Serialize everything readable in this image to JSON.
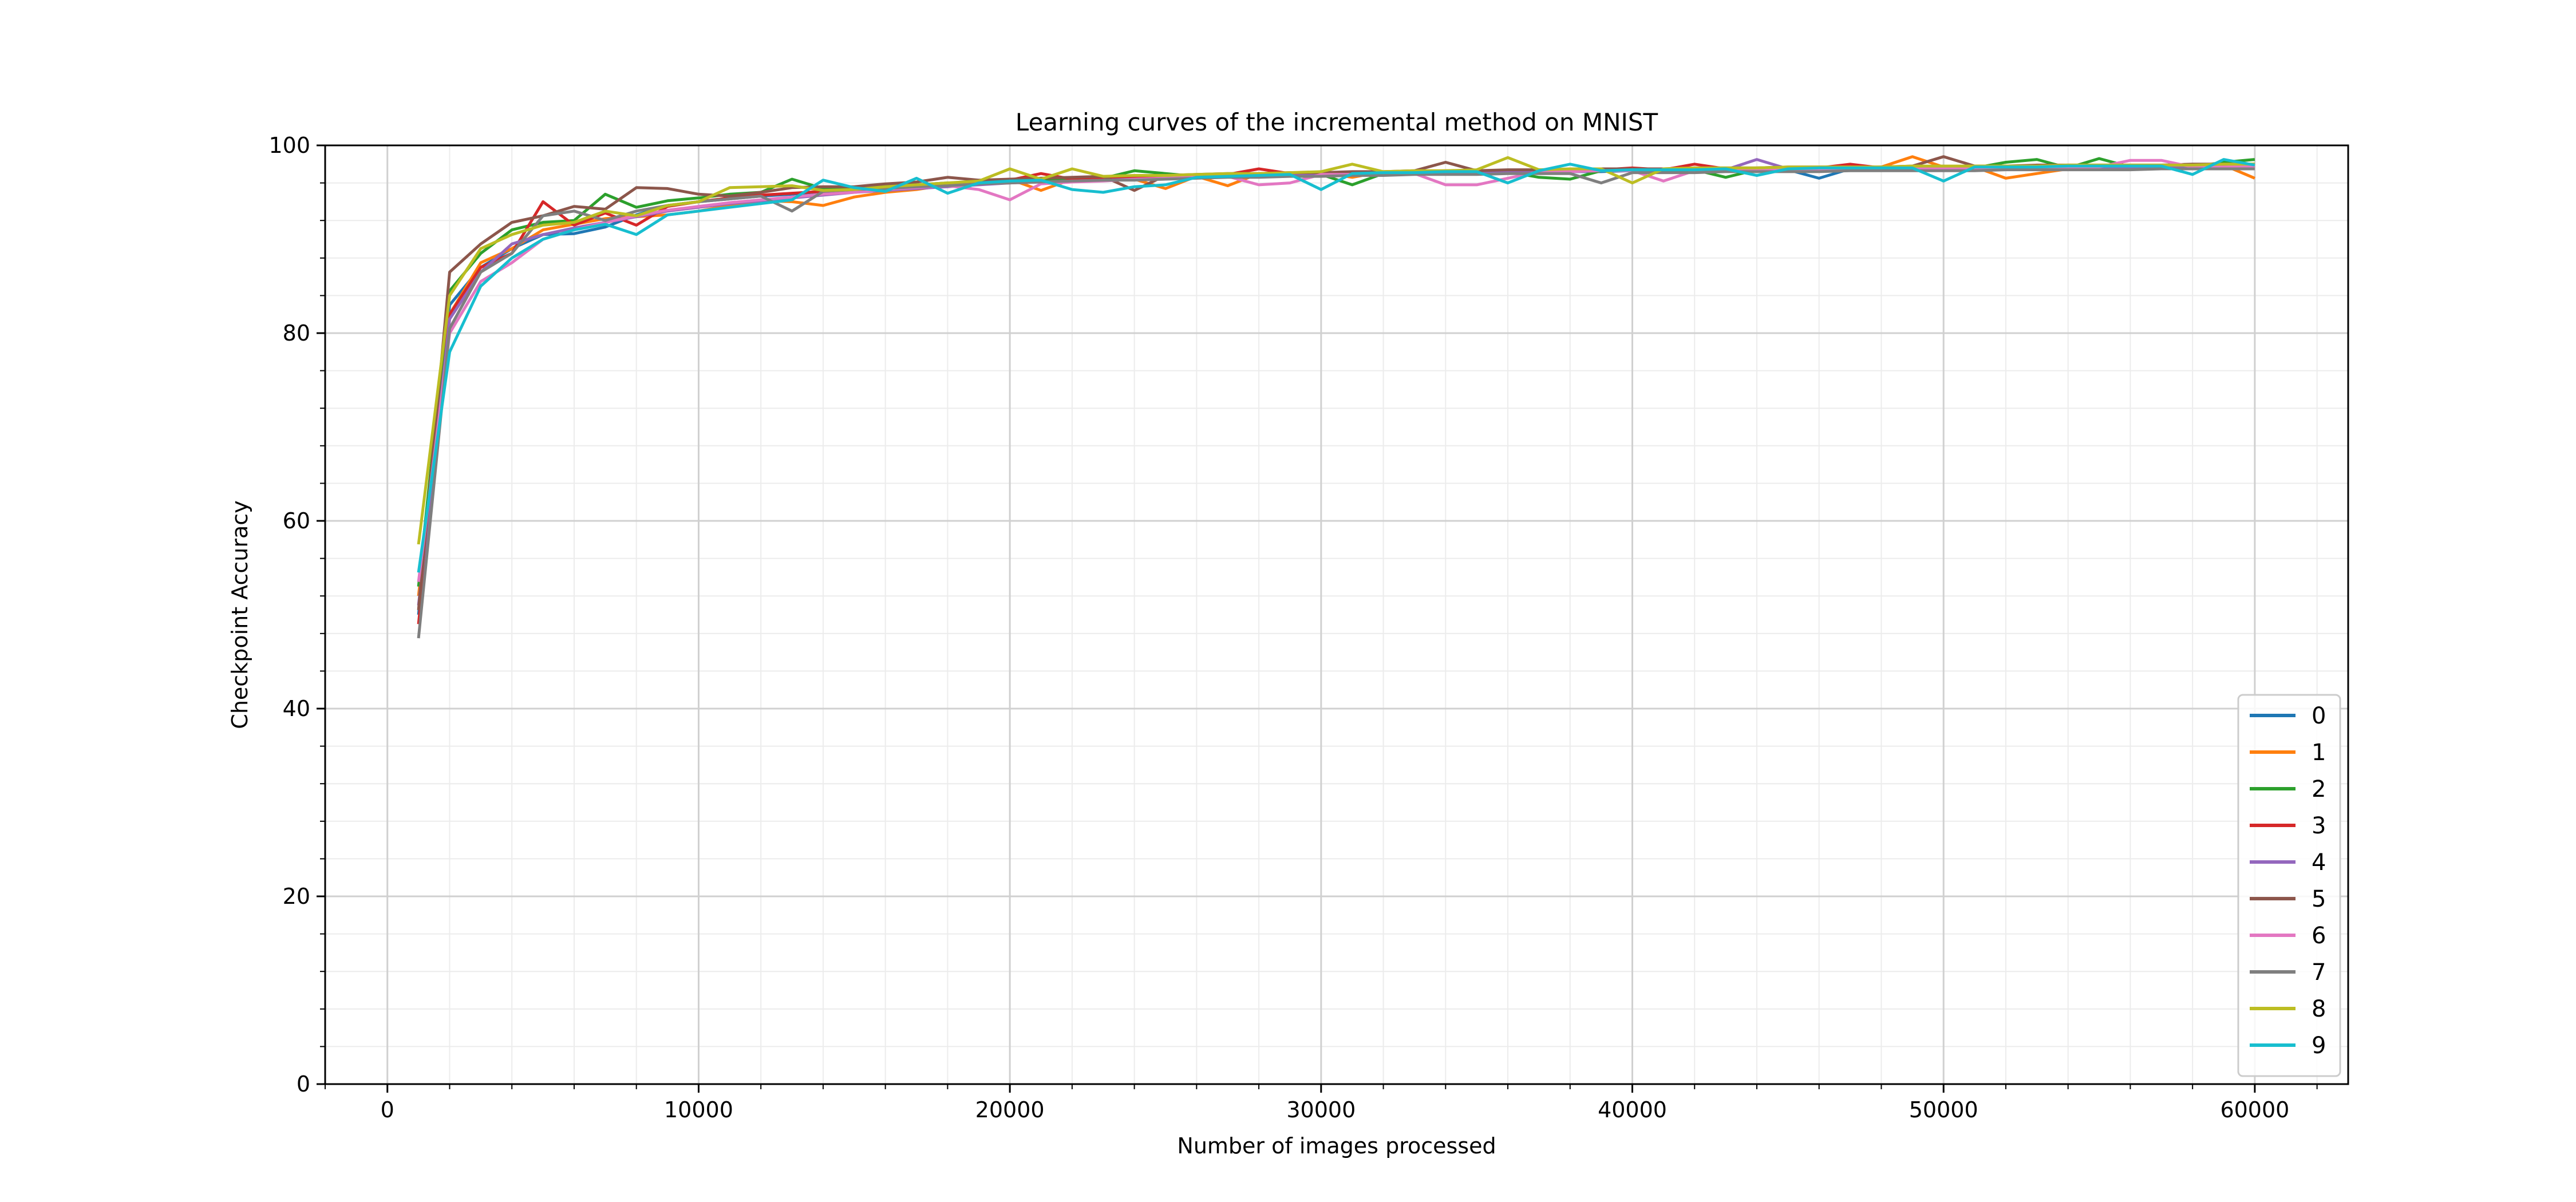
{
  "chart_data": {
    "type": "line",
    "title": "Learning curves of the incremental method on MNIST",
    "xlabel": "Number of images processed",
    "ylabel": "Checkpoint Accuracy",
    "xlim": [
      -2000,
      63000
    ],
    "ylim": [
      0,
      100
    ],
    "xticks": [
      0,
      10000,
      20000,
      30000,
      40000,
      50000,
      60000
    ],
    "yticks": [
      0,
      20,
      40,
      60,
      80,
      100
    ],
    "grid": "major and minor",
    "legend_position": "lower-right",
    "x": [
      1000,
      2000,
      3000,
      4000,
      5000,
      6000,
      7000,
      8000,
      9000,
      10000,
      11000,
      12000,
      13000,
      14000,
      15000,
      16000,
      17000,
      18000,
      19000,
      20000,
      21000,
      22000,
      23000,
      24000,
      25000,
      26000,
      27000,
      28000,
      29000,
      30000,
      31000,
      32000,
      33000,
      34000,
      35000,
      36000,
      37000,
      38000,
      39000,
      40000,
      41000,
      42000,
      43000,
      44000,
      45000,
      46000,
      47000,
      48000,
      49000,
      50000,
      51000,
      52000,
      53000,
      54000,
      55000,
      56000,
      57000,
      58000,
      59000,
      60000
    ],
    "series": [
      {
        "name": "0",
        "color": "#1f77b4",
        "values": [
          50.0,
          83.0,
          87.0,
          89.0,
          90.5,
          90.6,
          91.3,
          92.6,
          93.6,
          94.0,
          94.3,
          94.6,
          94.8,
          95.1,
          95.2,
          95.4,
          95.6,
          95.8,
          96.0,
          96.1,
          96.2,
          96.3,
          96.3,
          96.4,
          96.5,
          96.6,
          96.7,
          96.8,
          96.8,
          96.9,
          96.9,
          97.0,
          97.0,
          97.1,
          97.1,
          97.1,
          97.2,
          97.2,
          97.2,
          97.3,
          97.3,
          97.3,
          97.4,
          97.4,
          97.4,
          96.5,
          97.5,
          97.5,
          97.5,
          97.6,
          97.6,
          97.6,
          97.7,
          97.7,
          97.7,
          97.7,
          97.8,
          97.8,
          97.8,
          97.8
        ]
      },
      {
        "name": "1",
        "color": "#ff7f0e",
        "values": [
          52.0,
          82.0,
          87.5,
          89.0,
          91.0,
          91.6,
          92.2,
          92.4,
          92.6,
          93.0,
          93.6,
          94.1,
          94.0,
          93.6,
          94.5,
          95.0,
          95.3,
          95.8,
          96.1,
          96.4,
          95.2,
          96.4,
          96.5,
          96.4,
          95.4,
          96.7,
          95.7,
          97.0,
          97.1,
          97.1,
          96.6,
          97.2,
          97.2,
          97.3,
          97.3,
          97.3,
          97.4,
          97.4,
          97.4,
          97.5,
          97.5,
          97.5,
          97.5,
          97.6,
          97.6,
          97.6,
          97.6,
          97.7,
          98.8,
          97.7,
          97.7,
          96.5,
          97.0,
          97.5,
          97.8,
          97.8,
          97.8,
          97.8,
          97.9,
          96.5
        ]
      },
      {
        "name": "2",
        "color": "#2ca02c",
        "values": [
          53.0,
          84.5,
          88.5,
          91.0,
          91.8,
          92.0,
          94.8,
          93.4,
          94.1,
          94.4,
          94.8,
          95.0,
          96.4,
          95.4,
          95.5,
          95.7,
          95.8,
          96.0,
          96.1,
          96.2,
          96.3,
          96.4,
          96.5,
          97.3,
          97.0,
          96.7,
          96.8,
          96.8,
          96.9,
          96.9,
          95.8,
          97.0,
          97.1,
          97.1,
          97.1,
          97.2,
          96.6,
          96.4,
          97.3,
          97.3,
          97.3,
          97.4,
          96.6,
          97.4,
          97.4,
          97.5,
          97.5,
          97.5,
          97.5,
          97.6,
          97.6,
          98.2,
          98.5,
          97.6,
          98.6,
          97.7,
          97.7,
          97.7,
          98.2,
          98.5
        ]
      },
      {
        "name": "3",
        "color": "#d62728",
        "values": [
          49.0,
          82.0,
          87.0,
          88.5,
          94.0,
          91.5,
          92.8,
          91.5,
          93.5,
          94.0,
          94.4,
          94.7,
          94.9,
          95.1,
          95.3,
          95.5,
          95.7,
          95.9,
          96.1,
          96.3,
          97.0,
          96.4,
          96.5,
          96.6,
          96.7,
          96.8,
          96.9,
          97.5,
          97.0,
          97.0,
          97.1,
          97.1,
          97.2,
          97.2,
          97.2,
          97.3,
          97.3,
          97.3,
          97.4,
          97.6,
          97.4,
          98.0,
          97.5,
          97.5,
          97.5,
          97.6,
          98.0,
          97.6,
          97.6,
          97.7,
          97.7,
          97.7,
          97.7,
          97.8,
          97.8,
          97.8,
          97.8,
          97.8,
          97.9,
          97.9
        ]
      },
      {
        "name": "4",
        "color": "#9467bd",
        "values": [
          51.0,
          81.5,
          86.5,
          89.5,
          90.5,
          91.2,
          91.8,
          92.4,
          93.0,
          93.4,
          93.8,
          94.1,
          94.4,
          94.7,
          95.0,
          95.2,
          95.4,
          95.6,
          95.8,
          96.0,
          96.1,
          96.2,
          96.3,
          96.4,
          96.5,
          96.6,
          96.7,
          96.8,
          96.9,
          96.9,
          97.0,
          97.0,
          97.1,
          97.1,
          97.2,
          97.2,
          97.2,
          97.3,
          97.3,
          97.3,
          97.4,
          97.4,
          97.4,
          98.5,
          97.5,
          97.5,
          97.5,
          97.5,
          97.6,
          97.6,
          97.6,
          97.6,
          97.7,
          97.7,
          97.7,
          97.7,
          97.8,
          97.8,
          97.8,
          97.8
        ]
      },
      {
        "name": "5",
        "color": "#8c564b",
        "values": [
          50.5,
          86.5,
          89.5,
          91.8,
          92.5,
          93.5,
          93.2,
          95.5,
          95.4,
          94.8,
          94.6,
          95.0,
          95.5,
          95.6,
          95.6,
          95.9,
          96.1,
          96.6,
          96.3,
          96.4,
          96.5,
          96.6,
          96.7,
          95.2,
          96.8,
          96.9,
          97.0,
          97.0,
          97.1,
          97.1,
          97.2,
          97.2,
          97.3,
          98.2,
          97.3,
          97.4,
          97.4,
          97.4,
          97.5,
          97.5,
          97.5,
          97.6,
          97.6,
          97.6,
          97.7,
          97.7,
          97.7,
          97.7,
          97.8,
          98.8,
          97.8,
          97.8,
          97.9,
          97.9,
          97.9,
          97.9,
          97.9,
          98.0,
          98.0,
          98.0
        ]
      },
      {
        "name": "6",
        "color": "#e377c2",
        "values": [
          53.5,
          80.0,
          85.5,
          87.5,
          90.0,
          91.0,
          91.8,
          92.5,
          93.1,
          93.5,
          93.9,
          94.2,
          94.5,
          94.8,
          95.0,
          95.3,
          95.5,
          95.7,
          95.3,
          94.2,
          95.9,
          96.1,
          96.2,
          96.4,
          96.5,
          96.6,
          96.7,
          95.8,
          96.0,
          96.9,
          96.9,
          97.0,
          97.0,
          95.8,
          95.8,
          96.5,
          97.2,
          97.2,
          97.3,
          97.3,
          96.2,
          97.3,
          97.4,
          97.4,
          97.4,
          97.5,
          97.5,
          97.5,
          97.5,
          97.6,
          97.6,
          97.6,
          97.6,
          97.6,
          97.7,
          98.4,
          98.4,
          97.7,
          97.7,
          97.8
        ]
      },
      {
        "name": "7",
        "color": "#7f7f7f",
        "values": [
          47.5,
          80.5,
          86.5,
          88.5,
          92.5,
          93.0,
          92.0,
          93.0,
          93.6,
          94.0,
          94.3,
          94.6,
          93.0,
          95.1,
          95.3,
          95.4,
          95.6,
          95.7,
          95.9,
          96.0,
          96.1,
          96.2,
          96.3,
          96.3,
          96.4,
          96.5,
          96.6,
          96.6,
          96.7,
          96.7,
          96.8,
          96.8,
          96.9,
          96.9,
          96.9,
          97.0,
          97.0,
          97.0,
          96.0,
          97.1,
          97.1,
          97.1,
          97.2,
          97.2,
          97.2,
          97.2,
          97.3,
          97.3,
          97.3,
          97.3,
          97.3,
          97.4,
          97.4,
          97.4,
          97.4,
          97.4,
          97.5,
          97.5,
          97.5,
          97.5
        ]
      },
      {
        "name": "8",
        "color": "#bcbd22",
        "values": [
          57.5,
          84.0,
          89.0,
          90.5,
          91.5,
          91.8,
          93.0,
          92.5,
          93.6,
          94.0,
          95.5,
          95.6,
          95.7,
          95.2,
          95.3,
          95.6,
          95.8,
          96.0,
          96.2,
          97.5,
          96.4,
          97.5,
          96.7,
          96.8,
          96.8,
          96.9,
          97.0,
          97.0,
          97.1,
          97.2,
          98.0,
          97.2,
          97.3,
          97.3,
          97.4,
          98.7,
          97.4,
          97.5,
          97.5,
          96.0,
          97.5,
          97.6,
          97.6,
          97.6,
          97.7,
          97.7,
          97.7,
          97.7,
          97.8,
          97.8,
          97.8,
          97.8,
          97.8,
          97.9,
          97.9,
          97.9,
          97.9,
          97.9,
          98.0,
          98.0
        ]
      },
      {
        "name": "9",
        "color": "#17becf",
        "values": [
          54.5,
          78.0,
          85.0,
          88.0,
          90.0,
          91.0,
          91.6,
          90.5,
          92.6,
          93.0,
          93.4,
          93.8,
          94.2,
          96.3,
          95.5,
          95.1,
          96.5,
          94.9,
          96.0,
          96.2,
          96.3,
          95.3,
          95.0,
          95.6,
          95.8,
          96.6,
          96.7,
          96.8,
          96.9,
          95.3,
          97.0,
          97.1,
          97.1,
          97.2,
          97.2,
          96.0,
          97.3,
          98.0,
          97.3,
          97.4,
          97.4,
          97.4,
          97.5,
          96.8,
          97.5,
          97.6,
          97.6,
          97.6,
          97.6,
          96.2,
          97.7,
          97.7,
          97.7,
          97.8,
          97.8,
          97.8,
          97.8,
          96.9,
          98.5,
          97.9
        ]
      }
    ]
  }
}
